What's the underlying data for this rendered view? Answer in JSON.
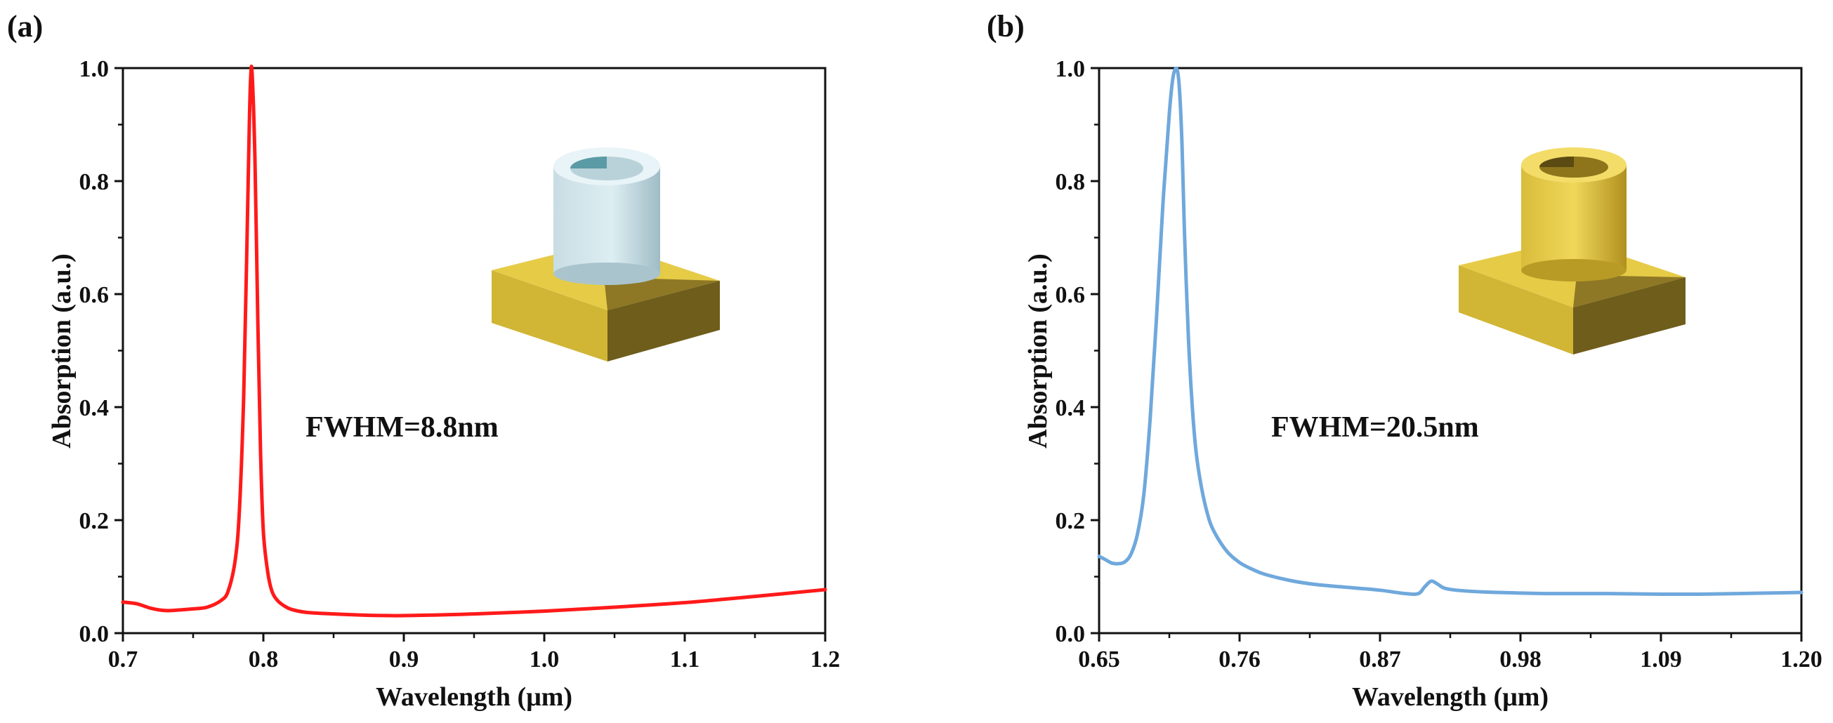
{
  "chart_data": [
    {
      "panel_label": "(a)",
      "type": "line",
      "title": "",
      "xlabel": "Wavelength (μm)",
      "ylabel": "Absorption (a.u.)",
      "xlim": [
        0.7,
        1.2
      ],
      "ylim": [
        0.0,
        1.0
      ],
      "xticks": [
        "0.7",
        "0.8",
        "0.9",
        "1.0",
        "1.1",
        "1.2"
      ],
      "yticks": [
        "0.0",
        "0.2",
        "0.4",
        "0.6",
        "0.8",
        "1.0"
      ],
      "annotation": "FWHM=8.8nm",
      "annotation_color": "#ff1a1a",
      "series": [
        {
          "name": "absorption",
          "color": "#ff1a1a",
          "x": [
            0.7,
            0.71,
            0.72,
            0.73,
            0.74,
            0.75,
            0.76,
            0.77,
            0.775,
            0.78,
            0.783,
            0.786,
            0.788,
            0.79,
            0.791,
            0.792,
            0.794,
            0.796,
            0.798,
            0.8,
            0.803,
            0.806,
            0.81,
            0.815,
            0.82,
            0.83,
            0.85,
            0.87,
            0.89,
            0.9,
            0.92,
            0.95,
            1.0,
            1.05,
            1.1,
            1.15,
            1.2
          ],
          "y": [
            0.055,
            0.052,
            0.044,
            0.04,
            0.041,
            0.043,
            0.046,
            0.058,
            0.075,
            0.13,
            0.22,
            0.42,
            0.65,
            0.9,
            0.985,
            0.99,
            0.84,
            0.56,
            0.32,
            0.18,
            0.11,
            0.075,
            0.058,
            0.048,
            0.042,
            0.037,
            0.034,
            0.032,
            0.031,
            0.031,
            0.032,
            0.034,
            0.039,
            0.046,
            0.054,
            0.065,
            0.077
          ]
        }
      ]
    },
    {
      "panel_label": "(b)",
      "type": "line",
      "title": "",
      "xlabel": "Wavelength (μm)",
      "ylabel": "Absorption (a.u.)",
      "xlim": [
        0.65,
        1.2
      ],
      "ylim": [
        0.0,
        1.0
      ],
      "xticks": [
        "0.65",
        "0.76",
        "0.87",
        "0.98",
        "1.09",
        "1.20"
      ],
      "yticks": [
        "0.0",
        "0.2",
        "0.4",
        "0.6",
        "0.8",
        "1.0"
      ],
      "annotation": "FWHM=20.5nm",
      "annotation_color": "#2a4f93",
      "series": [
        {
          "name": "absorption",
          "color": "#6fa8dc",
          "x": [
            0.65,
            0.655,
            0.66,
            0.665,
            0.67,
            0.675,
            0.68,
            0.685,
            0.69,
            0.695,
            0.7,
            0.705,
            0.708,
            0.711,
            0.713,
            0.715,
            0.717,
            0.72,
            0.723,
            0.726,
            0.73,
            0.735,
            0.74,
            0.75,
            0.76,
            0.77,
            0.78,
            0.8,
            0.82,
            0.85,
            0.87,
            0.89,
            0.9,
            0.905,
            0.91,
            0.915,
            0.92,
            0.93,
            0.95,
            0.98,
            1.0,
            1.05,
            1.09,
            1.12,
            1.15,
            1.2
          ],
          "y": [
            0.136,
            0.13,
            0.124,
            0.123,
            0.126,
            0.14,
            0.175,
            0.245,
            0.38,
            0.56,
            0.76,
            0.92,
            0.985,
            0.998,
            0.96,
            0.86,
            0.7,
            0.52,
            0.4,
            0.32,
            0.26,
            0.21,
            0.18,
            0.145,
            0.125,
            0.113,
            0.104,
            0.093,
            0.086,
            0.08,
            0.076,
            0.07,
            0.07,
            0.082,
            0.092,
            0.087,
            0.08,
            0.076,
            0.073,
            0.071,
            0.07,
            0.07,
            0.069,
            0.069,
            0.07,
            0.072
          ]
        }
      ]
    }
  ]
}
